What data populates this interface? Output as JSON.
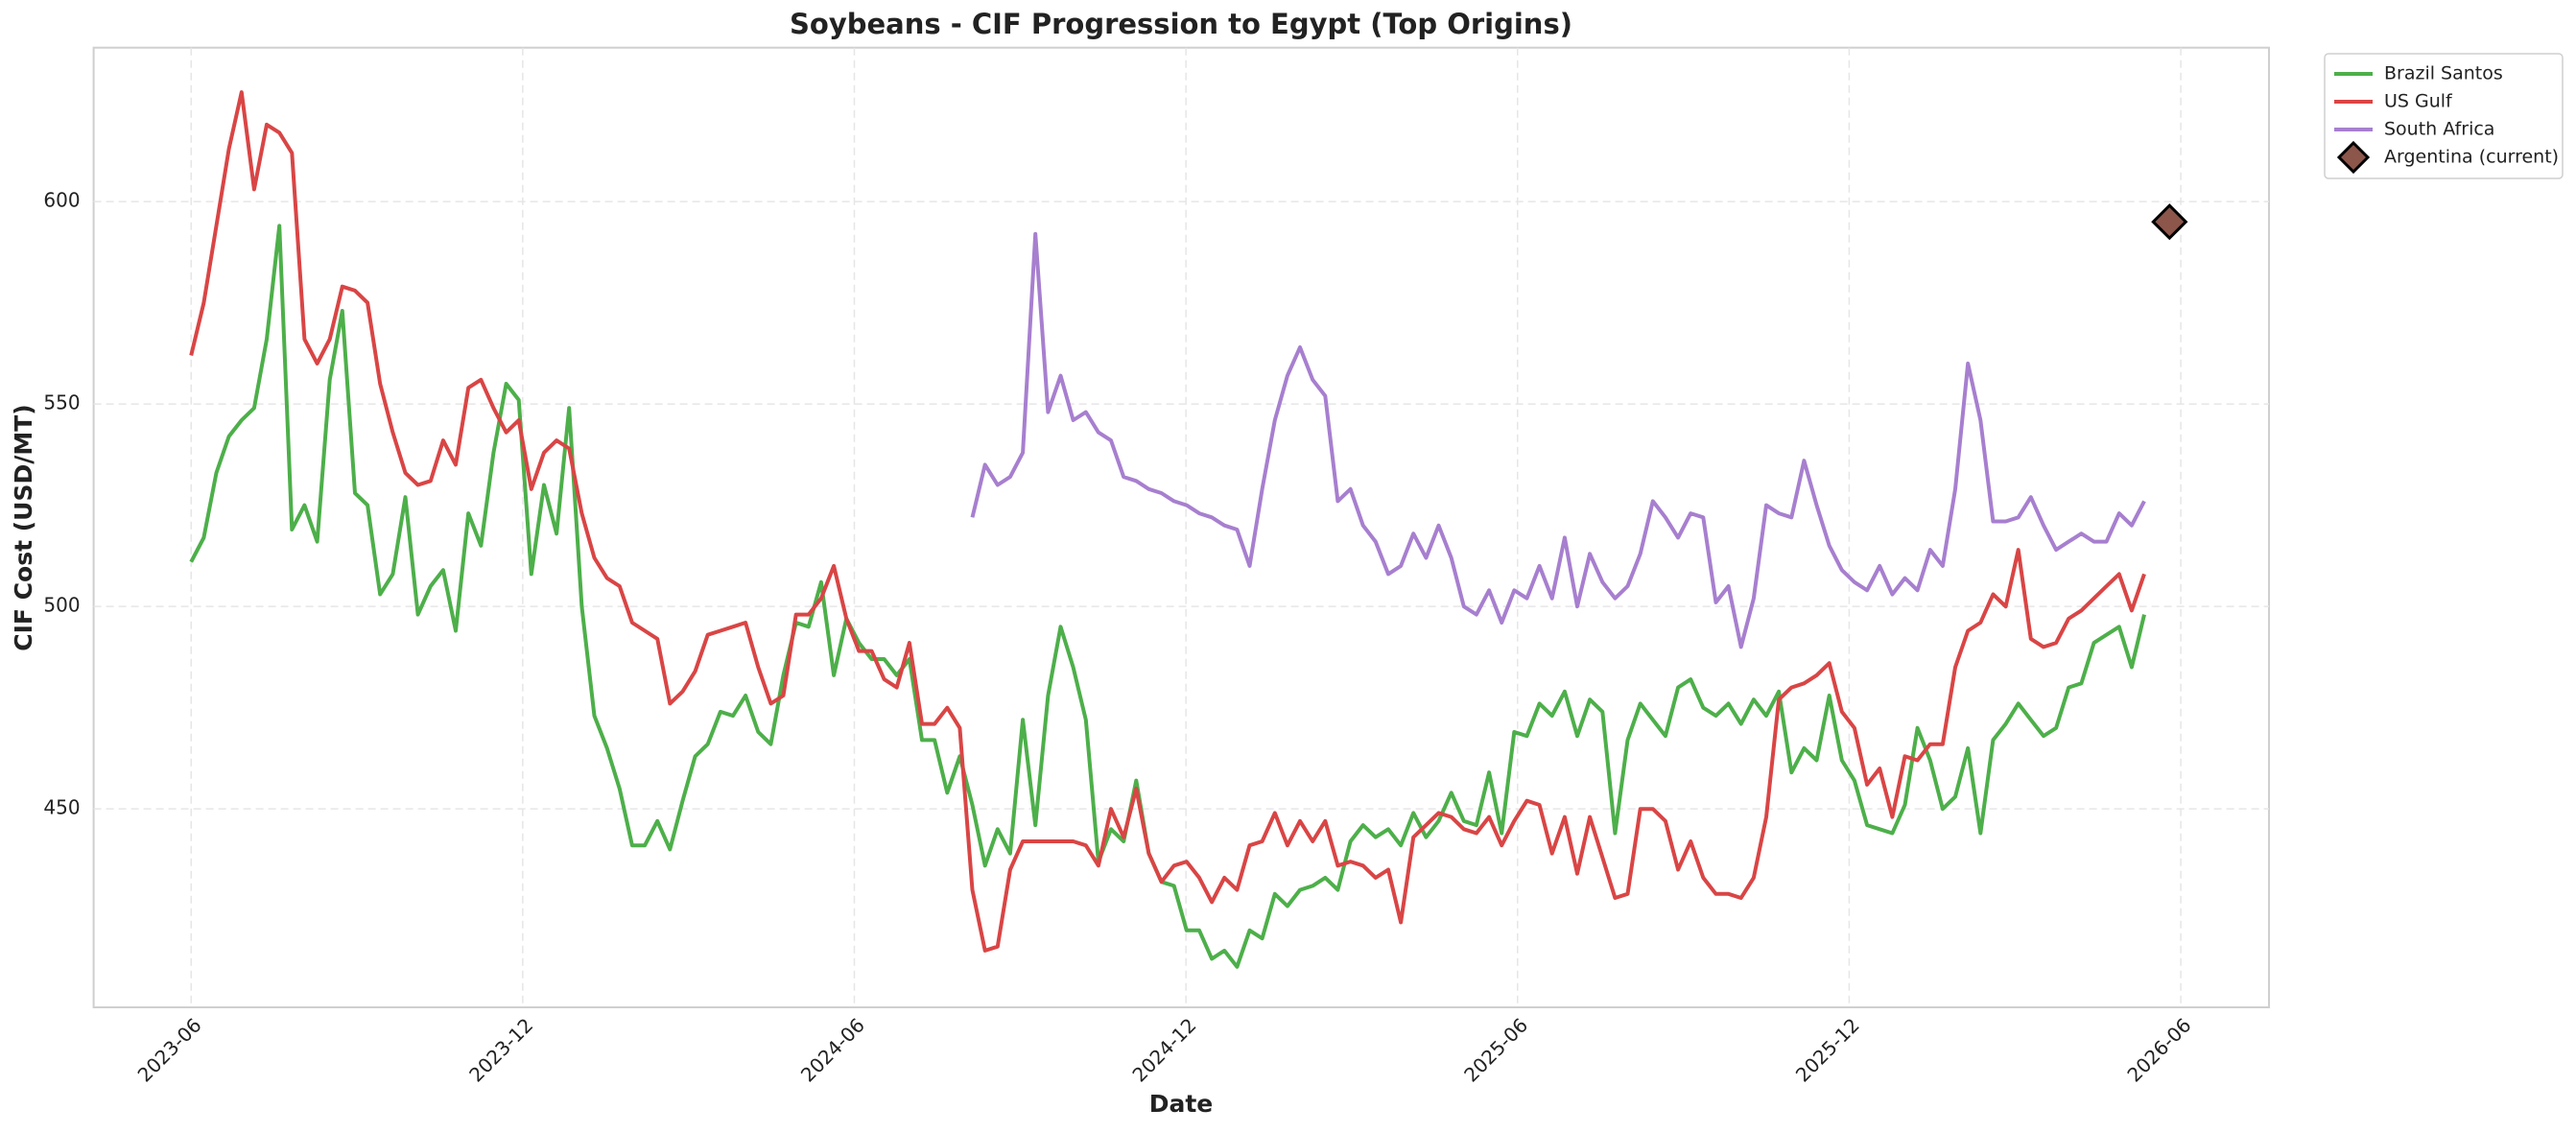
{
  "chart_data": {
    "type": "line",
    "title": "Soybeans - CIF Progression to Egypt (Top Origins)",
    "xlabel": "Date",
    "ylabel": "CIF Cost (USD/MT)",
    "grid": true,
    "legend": "outside upper right",
    "xlim": [
      2023.27,
      2026.55
    ],
    "ylim": [
      401,
      638
    ],
    "xticks": [
      {
        "value": 2023.417,
        "label": "2023-06"
      },
      {
        "value": 2023.917,
        "label": "2023-12"
      },
      {
        "value": 2024.417,
        "label": "2024-06"
      },
      {
        "value": 2024.917,
        "label": "2024-12"
      },
      {
        "value": 2025.417,
        "label": "2025-06"
      },
      {
        "value": 2025.917,
        "label": "2025-12"
      },
      {
        "value": 2026.417,
        "label": "2026-06"
      }
    ],
    "yticks": [
      450,
      500,
      550,
      600
    ],
    "x": [
      2023.417,
      2023.436,
      2023.455,
      2023.474,
      2023.493,
      2023.512,
      2023.531,
      2023.55,
      2023.569,
      2023.588,
      2023.607,
      2023.626,
      2023.645,
      2023.664,
      2023.683,
      2023.702,
      2023.721,
      2023.74,
      2023.759,
      2023.778,
      2023.797,
      2023.816,
      2023.835,
      2023.854,
      2023.873,
      2023.892,
      2023.911,
      2023.93,
      2023.949,
      2023.968,
      2023.987,
      2024.006,
      2024.025,
      2024.044,
      2024.063,
      2024.082,
      2024.101,
      2024.12,
      2024.139,
      2024.158,
      2024.177,
      2024.196,
      2024.215,
      2024.234,
      2024.253,
      2024.272,
      2024.291,
      2024.31,
      2024.329,
      2024.348,
      2024.367,
      2024.386,
      2024.405,
      2024.424,
      2024.443,
      2024.462,
      2024.481,
      2024.5,
      2024.519,
      2024.538,
      2024.557,
      2024.576,
      2024.595,
      2024.614,
      2024.633,
      2024.652,
      2024.671,
      2024.69,
      2024.709,
      2024.728,
      2024.747,
      2024.766,
      2024.785,
      2024.804,
      2024.823,
      2024.842,
      2024.861,
      2024.88,
      2024.899,
      2024.918,
      2024.937,
      2024.956,
      2024.975,
      2024.994,
      2025.013,
      2025.032,
      2025.051,
      2025.07,
      2025.089,
      2025.108,
      2025.127,
      2025.146,
      2025.165,
      2025.184,
      2025.203,
      2025.222,
      2025.241,
      2025.26,
      2025.279,
      2025.298,
      2025.317,
      2025.336,
      2025.355,
      2025.374,
      2025.393,
      2025.412,
      2025.431,
      2025.45,
      2025.469,
      2025.488,
      2025.507,
      2025.526,
      2025.545,
      2025.564,
      2025.583,
      2025.602,
      2025.621,
      2025.64,
      2025.659,
      2025.678,
      2025.697,
      2025.716,
      2025.735,
      2025.754,
      2025.773,
      2025.792,
      2025.811,
      2025.83,
      2025.849,
      2025.868,
      2025.887,
      2025.906,
      2025.925,
      2025.944,
      2025.963,
      2025.982,
      2026.001,
      2026.02,
      2026.039,
      2026.058,
      2026.077,
      2026.096,
      2026.115,
      2026.134,
      2026.153,
      2026.172,
      2026.191,
      2026.21,
      2026.229,
      2026.248,
      2026.267,
      2026.286,
      2026.305,
      2026.324,
      2026.343,
      2026.362
    ],
    "series": [
      {
        "name": "Brazil Santos",
        "color": "#4daf4a",
        "values": [
          511,
          517,
          533,
          542,
          546,
          549,
          566,
          594,
          519,
          525,
          516,
          556,
          573,
          528,
          525,
          503,
          508,
          527,
          498,
          505,
          509,
          494,
          523,
          515,
          538,
          555,
          551,
          508,
          530,
          518,
          549,
          500,
          473,
          465,
          455,
          441,
          441,
          447,
          440,
          452,
          463,
          466,
          474,
          473,
          478,
          469,
          466,
          483,
          496,
          495,
          506,
          483,
          497,
          491,
          487,
          487,
          483,
          487,
          467,
          467,
          454,
          463,
          451,
          436,
          445,
          439,
          472,
          446,
          478,
          495,
          485,
          472,
          437,
          445,
          442,
          457,
          439,
          432,
          431,
          420,
          420,
          413,
          415,
          411,
          420,
          418,
          429,
          426,
          430,
          431,
          433,
          430,
          442,
          446,
          443,
          445,
          441,
          449,
          443,
          447,
          454,
          447,
          446,
          459,
          444,
          469,
          468,
          476,
          473,
          479,
          468,
          477,
          474,
          444,
          467,
          476,
          472,
          468,
          480,
          482,
          475,
          473,
          476,
          471,
          477,
          473,
          479,
          459,
          465,
          462,
          478,
          462,
          457,
          446,
          445,
          444,
          451,
          470,
          462,
          450,
          453,
          465,
          444,
          467,
          471,
          476,
          472,
          468,
          470,
          480,
          481,
          491,
          493,
          495,
          485,
          498
        ]
      },
      {
        "name": "US Gulf",
        "color": "#d94545",
        "values": [
          562,
          575,
          594,
          613,
          627,
          603,
          619,
          617,
          612,
          566,
          560,
          566,
          579,
          578,
          575,
          555,
          543,
          533,
          530,
          531,
          541,
          535,
          554,
          556,
          549,
          543,
          546,
          529,
          538,
          541,
          539,
          523,
          512,
          507,
          505,
          496,
          494,
          492,
          476,
          479,
          484,
          493,
          494,
          495,
          496,
          485,
          476,
          478,
          498,
          498,
          502,
          510,
          497,
          489,
          489,
          482,
          480,
          491,
          471,
          471,
          475,
          470,
          430,
          415,
          416,
          435,
          442,
          442,
          442,
          442,
          442,
          441,
          436,
          450,
          443,
          455,
          439,
          432,
          436,
          437,
          433,
          427,
          433,
          430,
          441,
          442,
          449,
          441,
          447,
          442,
          447,
          436,
          437,
          436,
          433,
          435,
          422,
          443,
          446,
          449,
          448,
          445,
          444,
          448,
          441,
          447,
          452,
          451,
          439,
          448,
          434,
          448,
          438,
          428,
          429,
          450,
          450,
          447,
          435,
          442,
          433,
          429,
          429,
          428,
          433,
          448,
          477,
          480,
          481,
          483,
          486,
          474,
          470,
          456,
          460,
          448,
          463,
          462,
          466,
          466,
          485,
          494,
          496,
          503,
          500,
          514,
          492,
          490,
          491,
          497,
          499,
          502,
          505,
          508,
          499,
          508
        ]
      },
      {
        "name": "South Africa",
        "color": "#a77fcf",
        "values": [
          null,
          null,
          null,
          null,
          null,
          null,
          null,
          null,
          null,
          null,
          null,
          null,
          null,
          null,
          null,
          null,
          null,
          null,
          null,
          null,
          null,
          null,
          null,
          null,
          null,
          null,
          null,
          null,
          null,
          null,
          null,
          null,
          null,
          null,
          null,
          null,
          null,
          null,
          null,
          null,
          null,
          null,
          null,
          null,
          null,
          null,
          null,
          null,
          null,
          null,
          null,
          null,
          null,
          null,
          null,
          null,
          null,
          null,
          null,
          null,
          null,
          null,
          522,
          535,
          530,
          532,
          538,
          592,
          548,
          557,
          546,
          548,
          543,
          541,
          532,
          531,
          529,
          528,
          526,
          525,
          523,
          522,
          520,
          519,
          510,
          529,
          546,
          557,
          564,
          556,
          552,
          526,
          529,
          520,
          516,
          508,
          510,
          518,
          512,
          520,
          512,
          500,
          498,
          504,
          496,
          504,
          502,
          510,
          502,
          517,
          500,
          513,
          506,
          502,
          505,
          513,
          526,
          522,
          517,
          523,
          522,
          501,
          505,
          490,
          502,
          525,
          523,
          522,
          536,
          525,
          515,
          509,
          506,
          504,
          510,
          503,
          507,
          504,
          514,
          510,
          529,
          560,
          546,
          521,
          521,
          522,
          527,
          520,
          514,
          516,
          518,
          516,
          516,
          523,
          520,
          526
        ]
      },
      {
        "name": "Argentina (current)",
        "color": "#8c564b",
        "type": "scatter",
        "marker": "diamond",
        "edgecolor": "#000000",
        "x": [
          2026.4
        ],
        "values": [
          595
        ]
      }
    ]
  }
}
